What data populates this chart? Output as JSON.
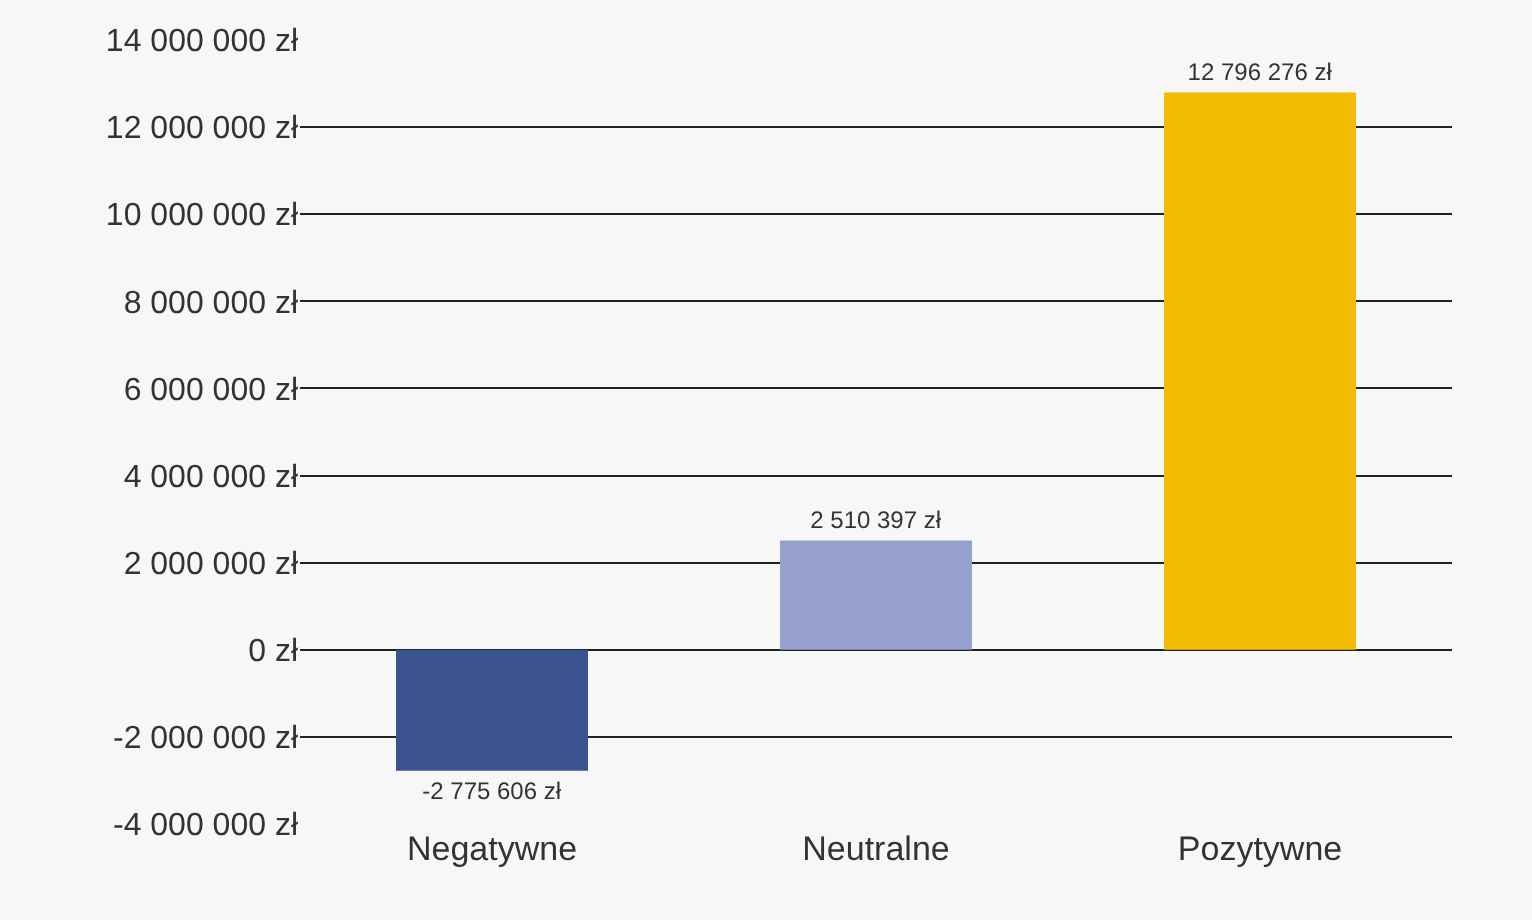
{
  "chart_data": {
    "type": "bar",
    "categories": [
      "Negatywne",
      "Neutralne",
      "Pozytywne"
    ],
    "values": [
      -2775606,
      2510397,
      12796276
    ],
    "colors": [
      "#3b5390",
      "#95a1cc",
      "#f2bd00"
    ],
    "value_labels": [
      "-2 775 606 zł",
      "2 510 397 zł",
      "12 796 276 zł"
    ],
    "ylim": [
      -4000000,
      14000000
    ],
    "yticks": [
      {
        "value": -4000000,
        "label": "-4 000 000 zł"
      },
      {
        "value": -2000000,
        "label": "-2 000 000 zł"
      },
      {
        "value": 0,
        "label": "0 zł"
      },
      {
        "value": 2000000,
        "label": "2 000 000 zł"
      },
      {
        "value": 4000000,
        "label": "4 000 000 zł"
      },
      {
        "value": 6000000,
        "label": "6 000 000 zł"
      },
      {
        "value": 8000000,
        "label": "8 000 000 zł"
      },
      {
        "value": 10000000,
        "label": "10 000 000 zł"
      },
      {
        "value": 12000000,
        "label": "12 000 000 zł"
      },
      {
        "value": 14000000,
        "label": "14 000 000 zł"
      }
    ],
    "grid": "y"
  }
}
